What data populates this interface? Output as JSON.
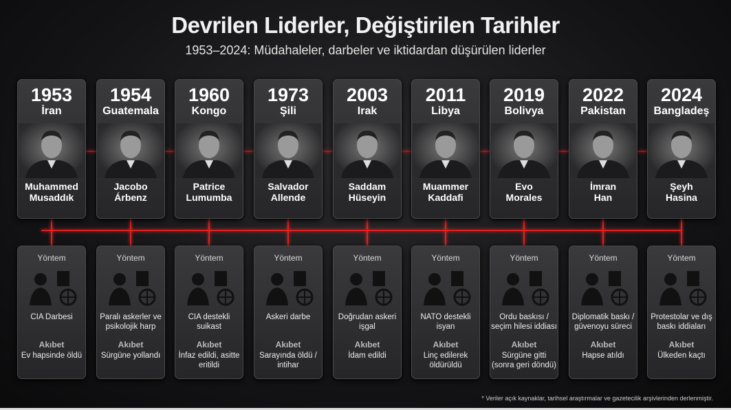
{
  "title": "Devrilen Liderler, Değiştirilen Tarihler",
  "subtitle": "1953–2024: Müdahaleler, darbeler ve iktidardan düşürülen liderler",
  "method_label": "Yöntem",
  "fate_label": "Akıbet",
  "accent_color": "#e02020",
  "leaders": [
    {
      "year": "1953",
      "country": "İran",
      "name1": "Muhammed",
      "name2": "Musaddık",
      "method": "CIA Darbesi",
      "fate": "Ev hapsinde öldü",
      "method_icons": "spy-laptop-documents-globe"
    },
    {
      "year": "1954",
      "country": "Guatemala",
      "name1": "Jacobo",
      "name2": "Árbenz",
      "method": "Paralı askerler ve psikolojik harp",
      "fate": "Sürgüne yollandı",
      "method_icons": "soldiers-leaflets-radio-tower"
    },
    {
      "year": "1960",
      "country": "Kongo",
      "name1": "Patrice",
      "name2": "Lumumba",
      "method": "CIA destekli suikast",
      "fate": "İnfaz edildi, asitte eritildi",
      "method_icons": "crosshair-skull-poison"
    },
    {
      "year": "1973",
      "country": "Şili",
      "name1": "Salvador",
      "name2": "Allende",
      "method": "Askeri darbe",
      "fate": "Sarayında öldü / intihar",
      "method_icons": "tanks-chain-soldier"
    },
    {
      "year": "2003",
      "country": "Irak",
      "name1": "Saddam",
      "name2": "Hüseyin",
      "method": "Doğrudan askeri işgal",
      "fate": "İdam edildi",
      "method_icons": "jets-explosion-troops-tank"
    },
    {
      "year": "2011",
      "country": "Libya",
      "name1": "Muammer",
      "name2": "Kaddafi",
      "method": "NATO destekli isyan",
      "fate": "Linç edilerek öldürüldü",
      "method_icons": "nato-rebels-jet"
    },
    {
      "year": "2019",
      "country": "Bolivya",
      "name1": "Evo",
      "name2": "Morales",
      "method": "Ordu baskısı / seçim hilesi iddiası",
      "fate": "Sürgüne gitti (sonra geri döndü)",
      "method_icons": "soldiers-questions-ballot-box"
    },
    {
      "year": "2022",
      "country": "Pakistan",
      "name1": "İmran",
      "name2": "Han",
      "method": "Diplomatik baskı / güvenoyu süreci",
      "fate": "Hapse atıldı",
      "method_icons": "diplomat-gavel-parliament"
    },
    {
      "year": "2024",
      "country": "Bangladeş",
      "name1": "Şeyh",
      "name2": "Hasina",
      "method": "Protestolar ve dış baskı iddiaları",
      "fate": "Ülkeden kaçtı",
      "method_icons": "protesters-flags-sun"
    }
  ],
  "footer": "* Veriler açık kaynaklar, tarihsel araştırmalar ve gazetecilik arşivlerinden derlenmiştir."
}
